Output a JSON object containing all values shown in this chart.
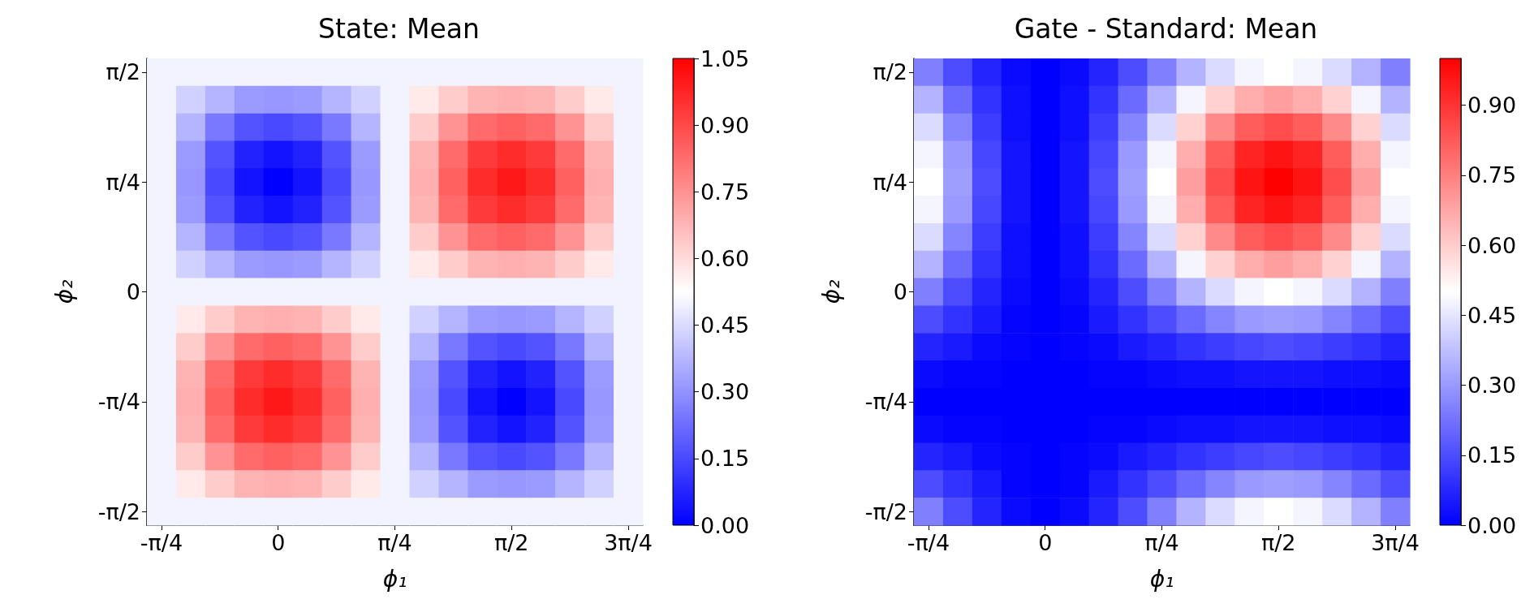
{
  "chart_data": [
    {
      "type": "heatmap",
      "title": "State: Mean",
      "xlabel": "ϕ₁",
      "ylabel": "ϕ₂",
      "categories": [
        "-π/4",
        null,
        null,
        null,
        "0",
        null,
        null,
        null,
        "π/4",
        null,
        null,
        null,
        "π/2",
        null,
        null,
        null,
        "3π/4"
      ],
      "y_categories": [
        "π/2",
        null,
        null,
        null,
        "π/4",
        null,
        null,
        null,
        "0",
        null,
        null,
        null,
        "-π/4",
        null,
        null,
        null,
        "-π/2"
      ],
      "clim": [
        0,
        1.05
      ],
      "cticks": [
        {
          "value": 0,
          "label": "0.00"
        },
        {
          "value": 0.15,
          "label": "0.15"
        },
        {
          "value": 0.3,
          "label": "0.30"
        },
        {
          "value": 0.45,
          "label": "0.45"
        },
        {
          "value": 0.6,
          "label": "0.60"
        },
        {
          "value": 0.75,
          "label": "0.75"
        },
        {
          "value": 0.9,
          "label": "0.90"
        },
        {
          "value": 1.05,
          "label": "1.05"
        }
      ],
      "cells": [
        [
          0.5,
          0.5,
          0.5,
          0.5,
          0.5,
          0.5,
          0.5,
          0.5,
          0.5,
          0.5,
          0.5,
          0.5,
          0.5,
          0.5,
          0.5,
          0.5,
          0.5
        ],
        [
          0.5,
          0.43,
          0.37,
          0.32,
          0.31,
          0.32,
          0.37,
          0.43,
          0.5,
          0.57,
          0.63,
          0.68,
          0.69,
          0.68,
          0.63,
          0.57,
          0.5
        ],
        [
          0.5,
          0.37,
          0.25,
          0.17,
          0.15,
          0.17,
          0.25,
          0.37,
          0.5,
          0.63,
          0.75,
          0.83,
          0.85,
          0.83,
          0.75,
          0.63,
          0.5
        ],
        [
          0.5,
          0.32,
          0.17,
          0.07,
          0.04,
          0.07,
          0.17,
          0.32,
          0.5,
          0.68,
          0.83,
          0.93,
          0.96,
          0.93,
          0.83,
          0.68,
          0.5
        ],
        [
          0.5,
          0.31,
          0.15,
          0.04,
          0,
          0.04,
          0.15,
          0.31,
          0.5,
          0.69,
          0.85,
          0.96,
          1,
          0.96,
          0.85,
          0.69,
          0.5
        ],
        [
          0.5,
          0.32,
          0.17,
          0.07,
          0.04,
          0.07,
          0.17,
          0.32,
          0.5,
          0.68,
          0.83,
          0.93,
          0.96,
          0.93,
          0.83,
          0.68,
          0.5
        ],
        [
          0.5,
          0.37,
          0.25,
          0.17,
          0.15,
          0.17,
          0.25,
          0.37,
          0.5,
          0.63,
          0.75,
          0.83,
          0.85,
          0.83,
          0.75,
          0.63,
          0.5
        ],
        [
          0.5,
          0.43,
          0.37,
          0.32,
          0.31,
          0.32,
          0.37,
          0.43,
          0.5,
          0.57,
          0.63,
          0.68,
          0.69,
          0.68,
          0.63,
          0.57,
          0.5
        ],
        [
          0.5,
          0.5,
          0.5,
          0.5,
          0.5,
          0.5,
          0.5,
          0.5,
          0.5,
          0.5,
          0.5,
          0.5,
          0.5,
          0.5,
          0.5,
          0.5,
          0.5
        ],
        [
          0.5,
          0.57,
          0.63,
          0.68,
          0.69,
          0.68,
          0.63,
          0.57,
          0.5,
          0.43,
          0.37,
          0.32,
          0.31,
          0.32,
          0.37,
          0.43,
          0.5
        ],
        [
          0.5,
          0.63,
          0.75,
          0.83,
          0.85,
          0.83,
          0.75,
          0.63,
          0.5,
          0.37,
          0.25,
          0.17,
          0.15,
          0.17,
          0.25,
          0.37,
          0.5
        ],
        [
          0.5,
          0.68,
          0.83,
          0.93,
          0.96,
          0.93,
          0.83,
          0.68,
          0.5,
          0.32,
          0.17,
          0.07,
          0.04,
          0.07,
          0.17,
          0.32,
          0.5
        ],
        [
          0.5,
          0.69,
          0.85,
          0.96,
          1,
          0.96,
          0.85,
          0.69,
          0.5,
          0.31,
          0.15,
          0.04,
          0,
          0.04,
          0.15,
          0.31,
          0.5
        ],
        [
          0.5,
          0.68,
          0.83,
          0.93,
          0.96,
          0.93,
          0.83,
          0.68,
          0.5,
          0.32,
          0.17,
          0.07,
          0.04,
          0.07,
          0.17,
          0.32,
          0.5
        ],
        [
          0.5,
          0.63,
          0.75,
          0.83,
          0.85,
          0.83,
          0.75,
          0.63,
          0.5,
          0.37,
          0.25,
          0.17,
          0.15,
          0.17,
          0.25,
          0.37,
          0.5
        ],
        [
          0.5,
          0.57,
          0.63,
          0.68,
          0.69,
          0.68,
          0.63,
          0.57,
          0.5,
          0.43,
          0.37,
          0.32,
          0.31,
          0.32,
          0.37,
          0.43,
          0.5
        ],
        [
          0.5,
          0.5,
          0.5,
          0.5,
          0.5,
          0.5,
          0.5,
          0.5,
          0.5,
          0.5,
          0.5,
          0.5,
          0.5,
          0.5,
          0.5,
          0.5,
          0.5
        ]
      ]
    },
    {
      "type": "heatmap",
      "title": "Gate - Standard: Mean",
      "xlabel": "ϕ₁",
      "ylabel": "ϕ₂",
      "categories": [
        "-π/4",
        null,
        null,
        null,
        "0",
        null,
        null,
        null,
        "π/4",
        null,
        null,
        null,
        "π/2",
        null,
        null,
        null,
        "3π/4"
      ],
      "y_categories": [
        "π/2",
        null,
        null,
        null,
        "π/4",
        null,
        null,
        null,
        "0",
        null,
        null,
        null,
        "-π/4",
        null,
        null,
        null,
        "-π/2"
      ],
      "clim": [
        0,
        1.0
      ],
      "cticks": [
        {
          "value": 0,
          "label": "0.00"
        },
        {
          "value": 0.15,
          "label": "0.15"
        },
        {
          "value": 0.3,
          "label": "0.30"
        },
        {
          "value": 0.45,
          "label": "0.45"
        },
        {
          "value": 0.6,
          "label": "0.60"
        },
        {
          "value": 0.75,
          "label": "0.75"
        },
        {
          "value": 0.9,
          "label": "0.90"
        }
      ],
      "cells": [
        [
          0.25,
          0.15,
          0.07,
          0.02,
          0,
          0.02,
          0.07,
          0.15,
          0.25,
          0.35,
          0.43,
          0.48,
          0.5,
          0.48,
          0.43,
          0.35,
          0.25
        ],
        [
          0.35,
          0.21,
          0.1,
          0.03,
          0,
          0.03,
          0.1,
          0.21,
          0.35,
          0.48,
          0.59,
          0.66,
          0.69,
          0.66,
          0.59,
          0.48,
          0.35
        ],
        [
          0.43,
          0.26,
          0.12,
          0.03,
          0,
          0.03,
          0.12,
          0.26,
          0.43,
          0.59,
          0.73,
          0.82,
          0.85,
          0.82,
          0.73,
          0.59,
          0.43
        ],
        [
          0.48,
          0.3,
          0.14,
          0.04,
          0,
          0.04,
          0.14,
          0.3,
          0.48,
          0.66,
          0.82,
          0.93,
          0.96,
          0.93,
          0.82,
          0.66,
          0.48
        ],
        [
          0.5,
          0.31,
          0.15,
          0.04,
          0,
          0.04,
          0.15,
          0.31,
          0.5,
          0.69,
          0.85,
          0.96,
          1,
          0.96,
          0.85,
          0.69,
          0.5
        ],
        [
          0.48,
          0.3,
          0.14,
          0.04,
          0,
          0.04,
          0.14,
          0.3,
          0.48,
          0.66,
          0.82,
          0.93,
          0.96,
          0.93,
          0.82,
          0.66,
          0.48
        ],
        [
          0.43,
          0.26,
          0.12,
          0.03,
          0,
          0.03,
          0.12,
          0.26,
          0.43,
          0.59,
          0.73,
          0.82,
          0.85,
          0.82,
          0.73,
          0.59,
          0.43
        ],
        [
          0.35,
          0.21,
          0.1,
          0.03,
          0,
          0.03,
          0.1,
          0.21,
          0.35,
          0.48,
          0.59,
          0.66,
          0.69,
          0.66,
          0.59,
          0.48,
          0.35
        ],
        [
          0.25,
          0.15,
          0.07,
          0.02,
          0,
          0.02,
          0.07,
          0.15,
          0.25,
          0.35,
          0.43,
          0.48,
          0.5,
          0.48,
          0.43,
          0.35,
          0.25
        ],
        [
          0.15,
          0.1,
          0.05,
          0.01,
          0,
          0.01,
          0.05,
          0.1,
          0.15,
          0.21,
          0.26,
          0.3,
          0.31,
          0.3,
          0.26,
          0.21,
          0.15
        ],
        [
          0.07,
          0.05,
          0.02,
          0.01,
          0,
          0.01,
          0.02,
          0.05,
          0.07,
          0.1,
          0.12,
          0.14,
          0.15,
          0.14,
          0.12,
          0.1,
          0.07
        ],
        [
          0.02,
          0.01,
          0.01,
          0,
          0,
          0,
          0.01,
          0.01,
          0.02,
          0.03,
          0.03,
          0.04,
          0.04,
          0.04,
          0.03,
          0.03,
          0.02
        ],
        [
          0,
          0,
          0,
          0,
          0,
          0,
          0,
          0,
          0,
          0,
          0,
          0,
          0,
          0,
          0,
          0,
          0
        ],
        [
          0.02,
          0.01,
          0.01,
          0,
          0,
          0,
          0.01,
          0.01,
          0.02,
          0.03,
          0.03,
          0.04,
          0.04,
          0.04,
          0.03,
          0.03,
          0.02
        ],
        [
          0.07,
          0.05,
          0.02,
          0.01,
          0,
          0.01,
          0.02,
          0.05,
          0.07,
          0.1,
          0.12,
          0.14,
          0.15,
          0.14,
          0.12,
          0.1,
          0.07
        ],
        [
          0.15,
          0.1,
          0.05,
          0.01,
          0,
          0.01,
          0.05,
          0.1,
          0.15,
          0.21,
          0.26,
          0.3,
          0.31,
          0.3,
          0.26,
          0.21,
          0.15
        ],
        [
          0.25,
          0.15,
          0.07,
          0.02,
          0,
          0.02,
          0.07,
          0.15,
          0.25,
          0.35,
          0.43,
          0.48,
          0.5,
          0.48,
          0.43,
          0.35,
          0.25
        ]
      ]
    }
  ]
}
